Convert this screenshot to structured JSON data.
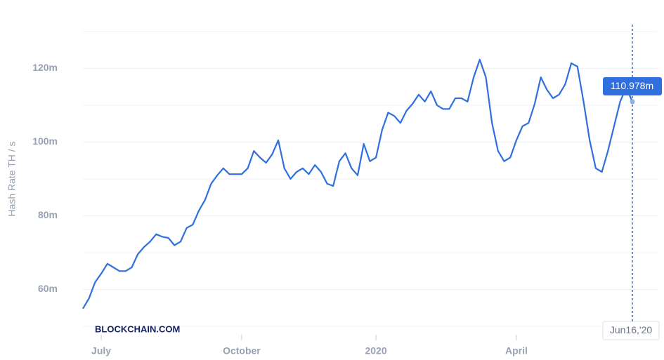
{
  "chart_data": {
    "type": "line",
    "y_label": "Hash Rate TH / s",
    "watermark": "BLOCKCHAIN.COM",
    "categories": [
      null,
      null,
      null,
      "July",
      null,
      null,
      null,
      null,
      null,
      null,
      null,
      null,
      null,
      null,
      null,
      null,
      null,
      null,
      null,
      null,
      null,
      null,
      null,
      null,
      null,
      null,
      "October",
      null,
      null,
      null,
      null,
      null,
      null,
      null,
      null,
      null,
      null,
      null,
      null,
      null,
      null,
      null,
      null,
      null,
      null,
      null,
      null,
      null,
      "2020",
      null,
      null,
      null,
      null,
      null,
      null,
      null,
      null,
      null,
      null,
      null,
      null,
      null,
      null,
      null,
      null,
      null,
      null,
      null,
      null,
      null,
      null,
      "April",
      null,
      null,
      null,
      null,
      null,
      null,
      null,
      null,
      null,
      null,
      null,
      null,
      null,
      null,
      null,
      null,
      null,
      null,
      "Jun16,'20"
    ],
    "series": [
      {
        "name": "Hash Rate",
        "color": "#2f6fde",
        "values": [
          54.8,
          57.6,
          62,
          64.3,
          67,
          66,
          65,
          65,
          66,
          69.6,
          71.5,
          73,
          75,
          74.3,
          74,
          72,
          73,
          76.7,
          77.6,
          81.4,
          84.3,
          88.7,
          91,
          92.9,
          91.3,
          91.3,
          91.3,
          92.9,
          97.6,
          95.8,
          94.4,
          96.7,
          100.5,
          92.9,
          90,
          91.9,
          92.9,
          91.3,
          93.8,
          91.9,
          88.7,
          88.1,
          94.8,
          97,
          92.9,
          91,
          99.5,
          94.8,
          95.8,
          103.3,
          108,
          107.1,
          105.2,
          108.5,
          110.4,
          112.9,
          111,
          113.8,
          110,
          109,
          109,
          111.9,
          111.9,
          111,
          117.6,
          122.4,
          117.6,
          105.2,
          97.6,
          94.8,
          95.8,
          100.5,
          104.3,
          105.2,
          110.4,
          117.6,
          114.2,
          111.9,
          112.9,
          115.7,
          121.4,
          120.5,
          111,
          100.5,
          92.9,
          91.9,
          97.6,
          104.3,
          111,
          114.8,
          110.978
        ],
        "value_labels": [
          null,
          null,
          null,
          null,
          null,
          null,
          null,
          null,
          null,
          null,
          null,
          null,
          null,
          null,
          null,
          null,
          null,
          null,
          null,
          null,
          null,
          null,
          null,
          null,
          null,
          null,
          null,
          null,
          null,
          null,
          null,
          null,
          null,
          null,
          null,
          null,
          null,
          null,
          null,
          null,
          null,
          null,
          null,
          null,
          null,
          null,
          null,
          null,
          null,
          null,
          null,
          null,
          null,
          null,
          null,
          null,
          null,
          null,
          null,
          null,
          null,
          null,
          null,
          null,
          null,
          null,
          null,
          null,
          null,
          null,
          null,
          null,
          null,
          null,
          null,
          null,
          null,
          null,
          null,
          null,
          null,
          null,
          null,
          null,
          null,
          null,
          null,
          null,
          null,
          null,
          "110.978m"
        ]
      }
    ],
    "ylim": [
      50,
      130
    ],
    "yticks": [
      {
        "value": 60,
        "label": "60m"
      },
      {
        "value": 80,
        "label": "80m"
      },
      {
        "value": 100,
        "label": "100m"
      },
      {
        "value": 120,
        "label": "120m"
      }
    ],
    "minor_yticks": [
      50,
      70,
      90,
      110,
      130
    ],
    "grid": true
  }
}
